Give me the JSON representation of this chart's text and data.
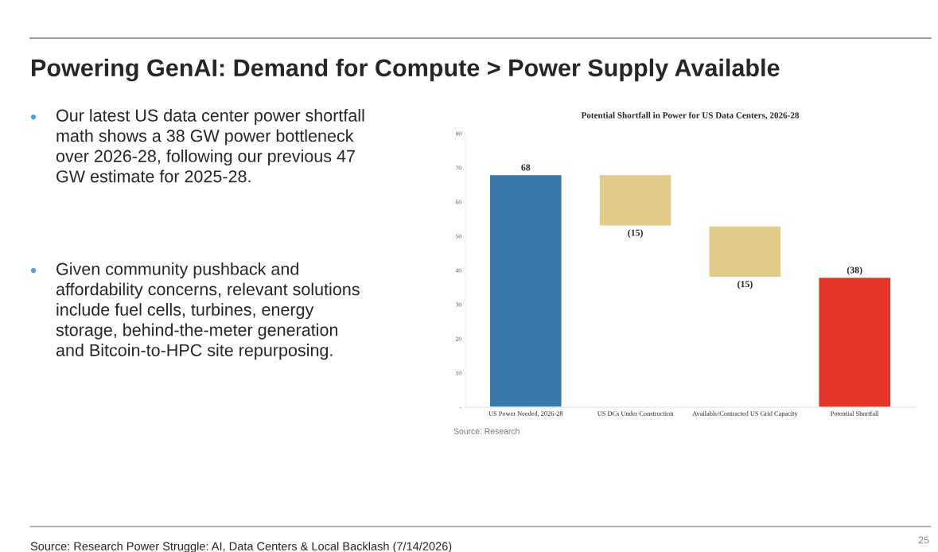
{
  "chart_data": {
    "type": "bar",
    "title": "Potential Shortfall in Power for US Data Centers, 2026-28",
    "categories": [
      "US Power Needed, 2026-28",
      "US DCs Under Construction",
      "Available/Contracted US Grid Capacity",
      "Potential Shortfall"
    ],
    "values": [
      68,
      -15,
      -15,
      38
    ],
    "base": [
      0,
      68,
      53,
      0
    ],
    "colors": [
      "#3a78aa",
      "#e3cb8a",
      "#e3cb8a",
      "#e5352a"
    ],
    "value_labels": [
      "68",
      "(15)",
      "(15)",
      "(38)"
    ],
    "ylim": [
      0,
      80
    ],
    "yticks": [
      {
        "value": 0,
        "label": "-"
      },
      10,
      20,
      30,
      40,
      50,
      60,
      70,
      80
    ],
    "grid": false,
    "annotations": [
      "Powering GenAI: Demand for Compute > Power Supply Available",
      "Our latest US data center power shortfall\nmath shows a 38 GW power bottleneck\nover 2026-28, following our previous 47\nGW estimate for 2025-28.",
      "Given community pushback and\naffordability concerns, relevant solutions\ninclude fuel cells, turbines, energy\nstorage, behind-the-meter generation\nand Bitcoin-to-HPC site repurposing.",
      "Source: Research",
      "Source: Research Power Struggle: AI, Data Centers & Local Backlash (7/14/2026)",
      "25"
    ]
  }
}
